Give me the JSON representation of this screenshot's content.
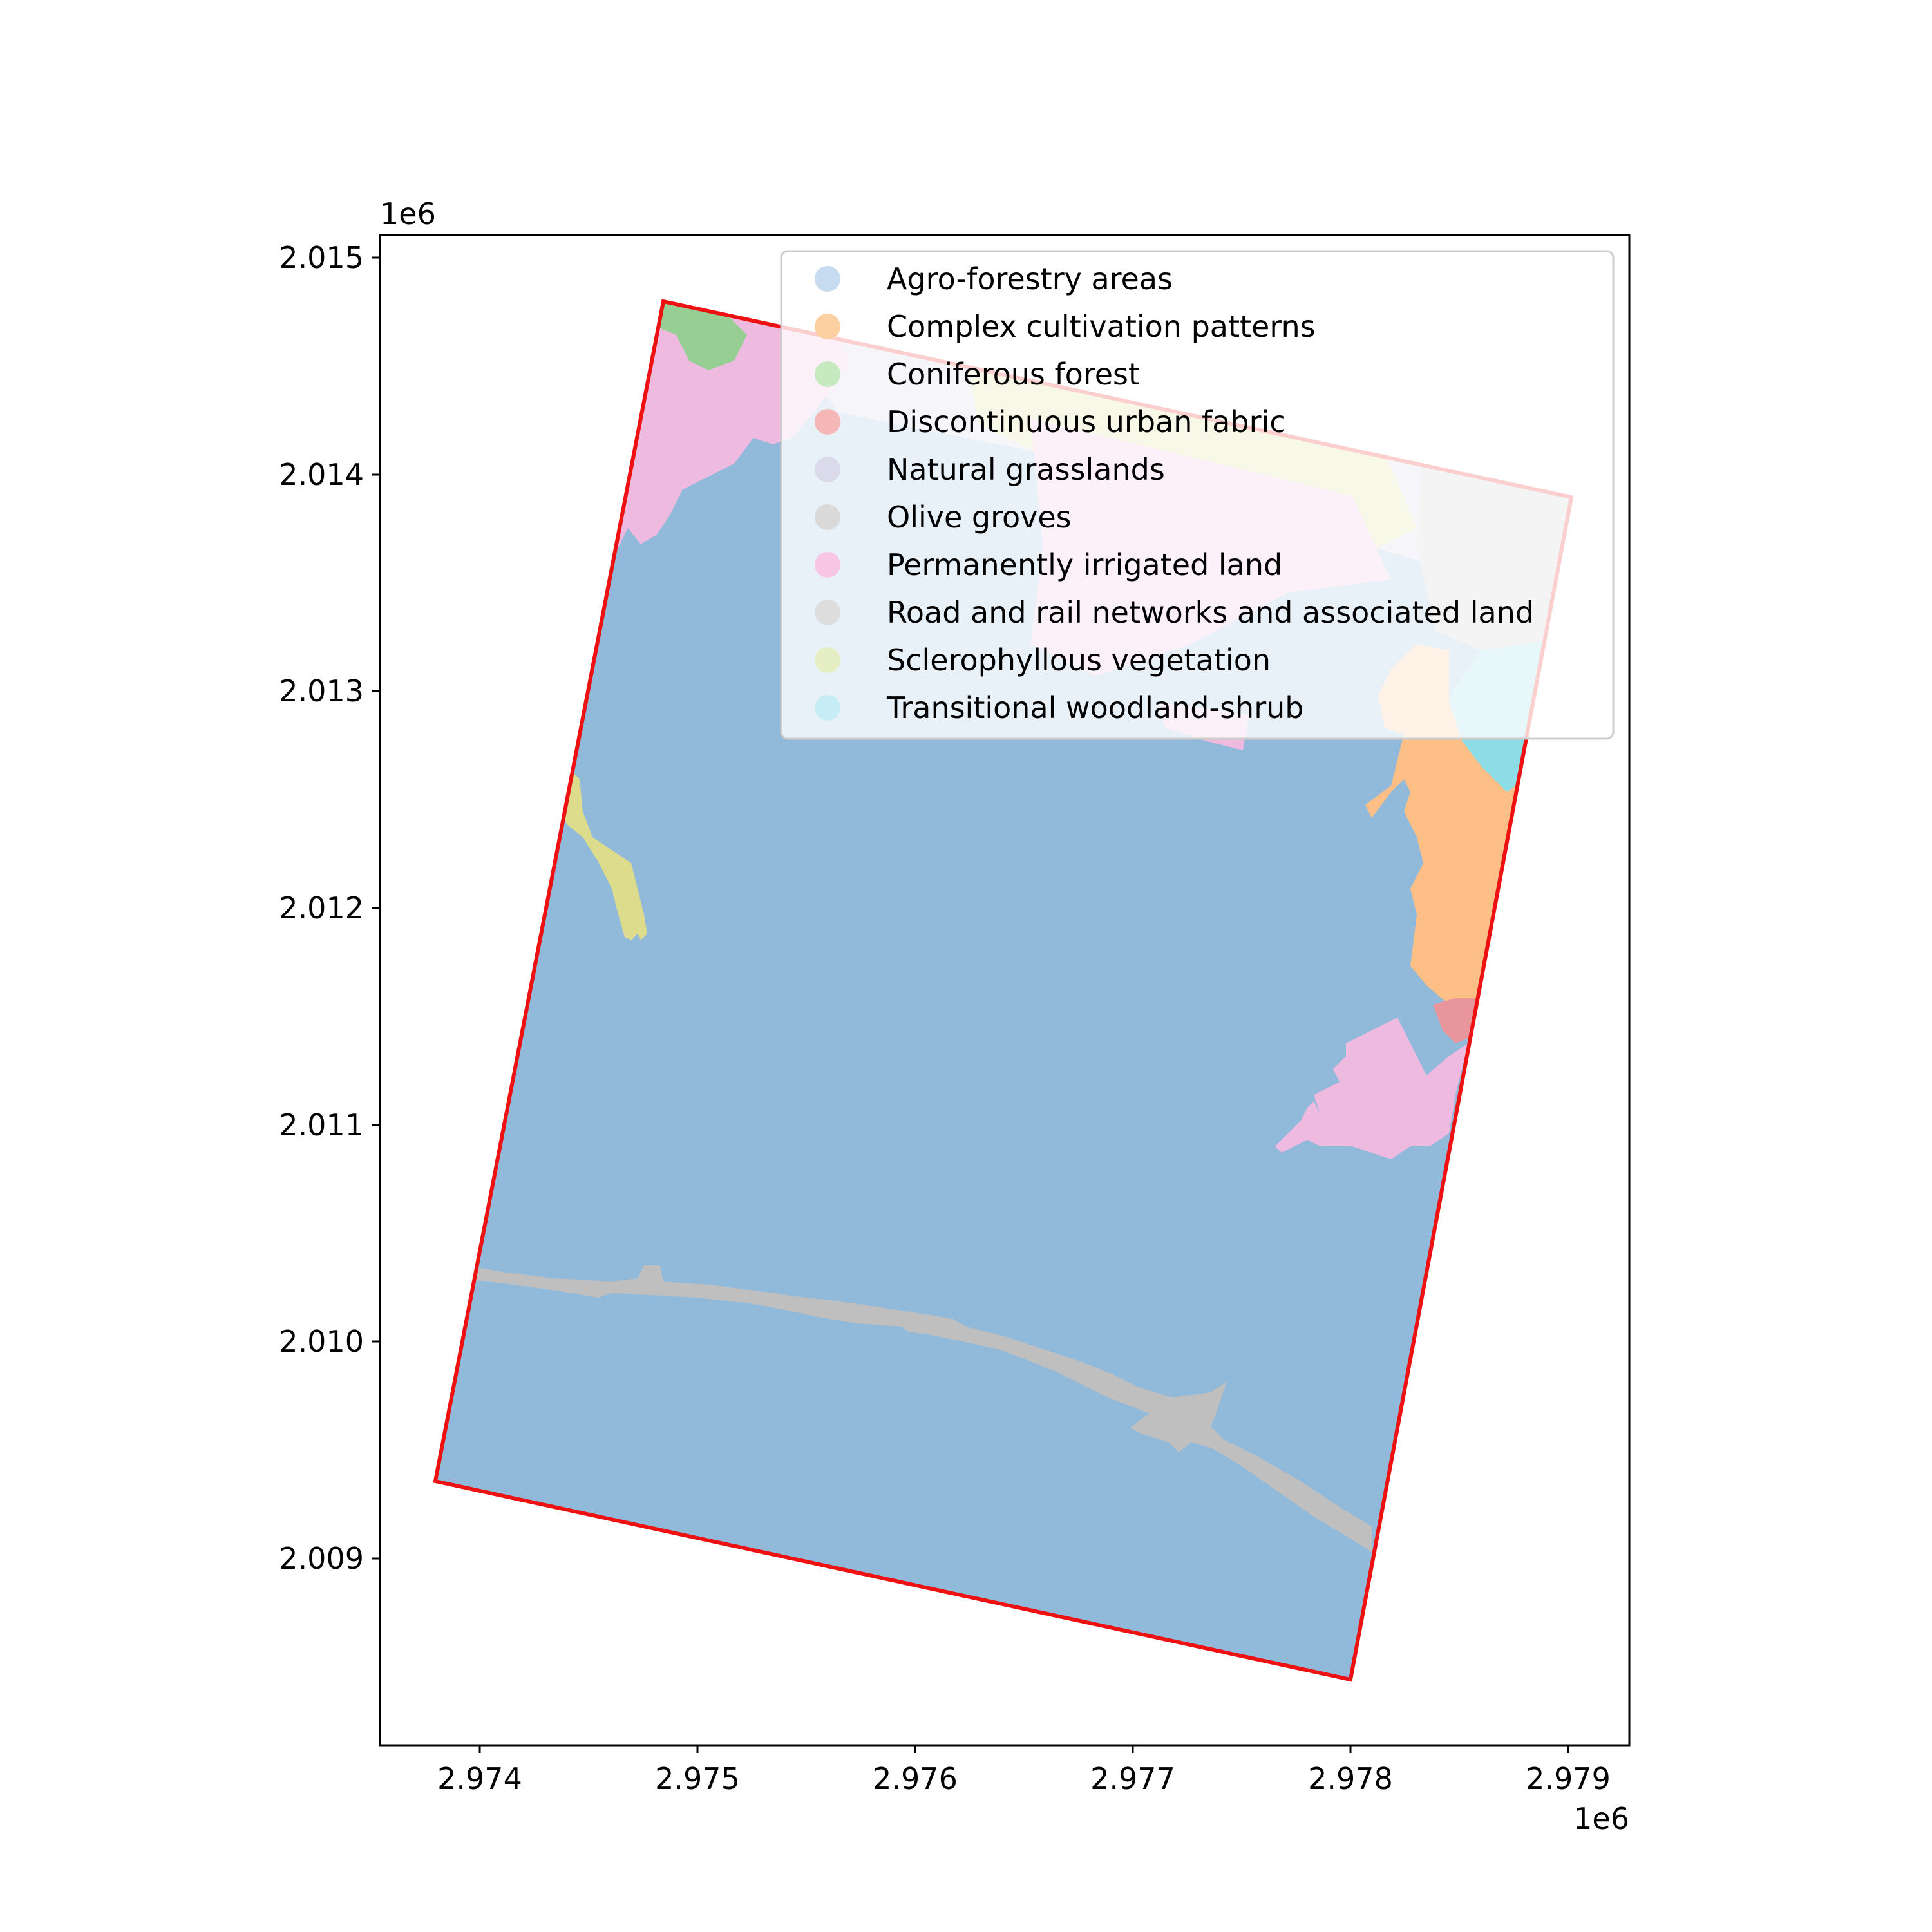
{
  "x_axis": {
    "ticks": [
      "2.974",
      "2.975",
      "2.976",
      "2.977",
      "2.978",
      "2.979"
    ],
    "offset_label": "1e6"
  },
  "y_axis": {
    "ticks": [
      "2.015",
      "2.014",
      "2.013",
      "2.012",
      "2.011",
      "2.010",
      "2.009"
    ],
    "offset_label": "1e6"
  },
  "legend": {
    "placement": "top-right",
    "items": [
      {
        "label": "Agro-forestry areas",
        "color": "#c6dbef"
      },
      {
        "label": "Complex cultivation patterns",
        "color": "#fdd0a2"
      },
      {
        "label": "Coniferous forest",
        "color": "#c7e9c0"
      },
      {
        "label": "Discontinuous urban fabric",
        "color": "#f4b6b6"
      },
      {
        "label": "Natural grasslands",
        "color": "#dadaeb"
      },
      {
        "label": "Olive groves",
        "color": "#d9d9d9"
      },
      {
        "label": "Permanently irrigated land",
        "color": "#f7c6e4"
      },
      {
        "label": "Road and rail networks and associated land",
        "color": "#dddddd"
      },
      {
        "label": "Sclerophyllous vegetation",
        "color": "#e6efc4"
      },
      {
        "label": "Transitional woodland-shrub",
        "color": "#c6edf3"
      }
    ]
  },
  "layer_colors": {
    "Agro-forestry areas": "#91b9da",
    "Complex cultivation patterns": "#fdbf86",
    "Coniferous forest": "#96ce94",
    "Discontinuous urban fabric": "#e8959c",
    "Natural grasslands": "#cfcbe2",
    "Olive groves": "#c7c7c7",
    "Permanently irrigated land": "#efbadf",
    "Road and rail networks and associated land": "#bfbfbf",
    "Sclerophyllous vegetation": "#dcdc8c",
    "Transitional woodland-shrub": "#8cdde6"
  },
  "boundary_color": "#ee1111"
}
